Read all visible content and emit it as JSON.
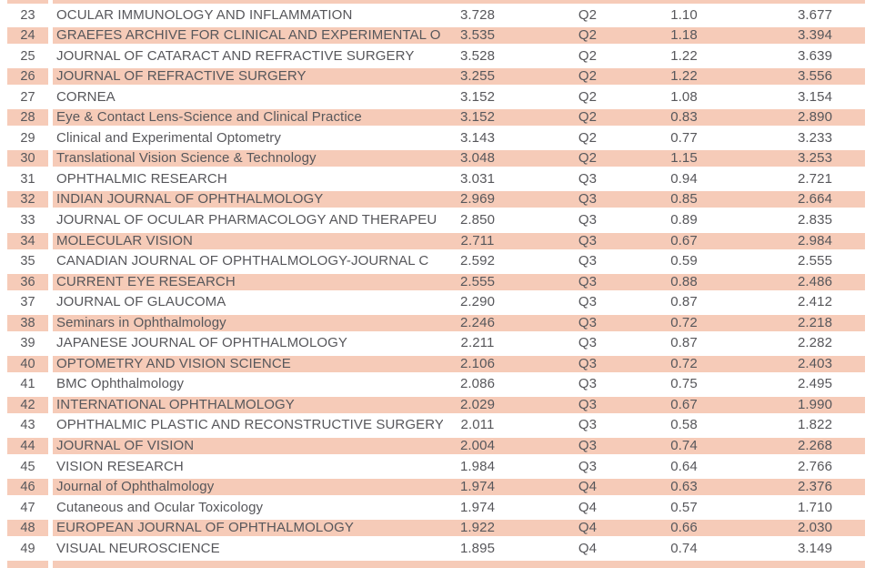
{
  "table": {
    "highlight_color": "#f6cbb8",
    "text_color": "#57575b",
    "rows": [
      {
        "rank": "23",
        "journal": "OCULAR IMMUNOLOGY AND INFLAMMATION",
        "impact_factor": "3.728",
        "quartile": "Q2",
        "score3": "1.10",
        "score4": "3.677",
        "highlighted": false
      },
      {
        "rank": "24",
        "journal": "GRAEFES ARCHIVE FOR CLINICAL AND EXPERIMENTAL O",
        "impact_factor": "3.535",
        "quartile": "Q2",
        "score3": "1.18",
        "score4": "3.394",
        "highlighted": true
      },
      {
        "rank": "25",
        "journal": "JOURNAL OF CATARACT AND REFRACTIVE SURGERY",
        "impact_factor": "3.528",
        "quartile": "Q2",
        "score3": "1.22",
        "score4": "3.639",
        "highlighted": false
      },
      {
        "rank": "26",
        "journal": "JOURNAL OF REFRACTIVE SURGERY",
        "impact_factor": "3.255",
        "quartile": "Q2",
        "score3": "1.22",
        "score4": "3.556",
        "highlighted": true
      },
      {
        "rank": "27",
        "journal": "CORNEA",
        "impact_factor": "3.152",
        "quartile": "Q2",
        "score3": "1.08",
        "score4": "3.154",
        "highlighted": false
      },
      {
        "rank": "28",
        "journal": "Eye & Contact Lens-Science and Clinical Practice",
        "impact_factor": "3.152",
        "quartile": "Q2",
        "score3": "0.83",
        "score4": "2.890",
        "highlighted": true
      },
      {
        "rank": "29",
        "journal": "Clinical and Experimental Optometry",
        "impact_factor": "3.143",
        "quartile": "Q2",
        "score3": "0.77",
        "score4": "3.233",
        "highlighted": false
      },
      {
        "rank": "30",
        "journal": "Translational Vision Science & Technology",
        "impact_factor": "3.048",
        "quartile": "Q2",
        "score3": "1.15",
        "score4": "3.253",
        "highlighted": true
      },
      {
        "rank": "31",
        "journal": "OPHTHALMIC RESEARCH",
        "impact_factor": "3.031",
        "quartile": "Q3",
        "score3": "0.94",
        "score4": "2.721",
        "highlighted": false
      },
      {
        "rank": "32",
        "journal": "INDIAN JOURNAL OF OPHTHALMOLOGY",
        "impact_factor": "2.969",
        "quartile": "Q3",
        "score3": "0.85",
        "score4": "2.664",
        "highlighted": true
      },
      {
        "rank": "33",
        "journal": "JOURNAL OF OCULAR PHARMACOLOGY AND THERAPEU",
        "impact_factor": "2.850",
        "quartile": "Q3",
        "score3": "0.89",
        "score4": "2.835",
        "highlighted": false
      },
      {
        "rank": "34",
        "journal": "MOLECULAR VISION",
        "impact_factor": "2.711",
        "quartile": "Q3",
        "score3": "0.67",
        "score4": "2.984",
        "highlighted": true
      },
      {
        "rank": "35",
        "journal": "CANADIAN JOURNAL OF OPHTHALMOLOGY-JOURNAL C",
        "impact_factor": "2.592",
        "quartile": "Q3",
        "score3": "0.59",
        "score4": "2.555",
        "highlighted": false
      },
      {
        "rank": "36",
        "journal": "CURRENT EYE RESEARCH",
        "impact_factor": "2.555",
        "quartile": "Q3",
        "score3": "0.88",
        "score4": "2.486",
        "highlighted": true
      },
      {
        "rank": "37",
        "journal": "JOURNAL OF GLAUCOMA",
        "impact_factor": "2.290",
        "quartile": "Q3",
        "score3": "0.87",
        "score4": "2.412",
        "highlighted": false
      },
      {
        "rank": "38",
        "journal": "Seminars in Ophthalmology",
        "impact_factor": "2.246",
        "quartile": "Q3",
        "score3": "0.72",
        "score4": "2.218",
        "highlighted": true
      },
      {
        "rank": "39",
        "journal": "JAPANESE JOURNAL OF OPHTHALMOLOGY",
        "impact_factor": "2.211",
        "quartile": "Q3",
        "score3": "0.87",
        "score4": "2.282",
        "highlighted": false
      },
      {
        "rank": "40",
        "journal": "OPTOMETRY AND VISION SCIENCE",
        "impact_factor": "2.106",
        "quartile": "Q3",
        "score3": "0.72",
        "score4": "2.403",
        "highlighted": true
      },
      {
        "rank": "41",
        "journal": "BMC Ophthalmology",
        "impact_factor": "2.086",
        "quartile": "Q3",
        "score3": "0.75",
        "score4": "2.495",
        "highlighted": false
      },
      {
        "rank": "42",
        "journal": "INTERNATIONAL OPHTHALMOLOGY",
        "impact_factor": "2.029",
        "quartile": "Q3",
        "score3": "0.67",
        "score4": "1.990",
        "highlighted": true
      },
      {
        "rank": "43",
        "journal": "OPHTHALMIC PLASTIC AND RECONSTRUCTIVE SURGERY",
        "impact_factor": "2.011",
        "quartile": "Q3",
        "score3": "0.58",
        "score4": "1.822",
        "highlighted": false
      },
      {
        "rank": "44",
        "journal": "JOURNAL OF VISION",
        "impact_factor": "2.004",
        "quartile": "Q3",
        "score3": "0.74",
        "score4": "2.268",
        "highlighted": true
      },
      {
        "rank": "45",
        "journal": "VISION RESEARCH",
        "impact_factor": "1.984",
        "quartile": "Q3",
        "score3": "0.64",
        "score4": "2.766",
        "highlighted": false
      },
      {
        "rank": "46",
        "journal": "Journal of Ophthalmology",
        "impact_factor": "1.974",
        "quartile": "Q4",
        "score3": "0.63",
        "score4": "2.376",
        "highlighted": true
      },
      {
        "rank": "47",
        "journal": "Cutaneous and Ocular Toxicology",
        "impact_factor": "1.974",
        "quartile": "Q4",
        "score3": "0.57",
        "score4": "1.710",
        "highlighted": false
      },
      {
        "rank": "48",
        "journal": "EUROPEAN JOURNAL OF OPHTHALMOLOGY",
        "impact_factor": "1.922",
        "quartile": "Q4",
        "score3": "0.66",
        "score4": "2.030",
        "highlighted": true
      },
      {
        "rank": "49",
        "journal": "VISUAL NEUROSCIENCE",
        "impact_factor": "1.895",
        "quartile": "Q4",
        "score3": "0.74",
        "score4": "3.149",
        "highlighted": false
      }
    ]
  }
}
